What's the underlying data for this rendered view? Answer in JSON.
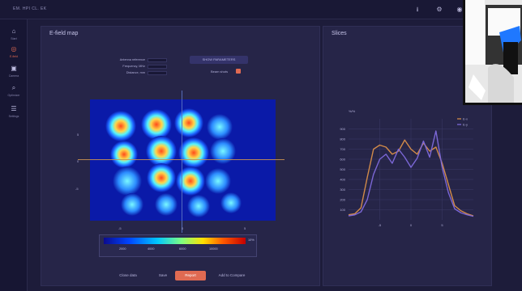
{
  "app": {
    "brand": "EM. HPI CL. EK",
    "topbar_icons": [
      "download-icon",
      "settings-icon",
      "user-icon"
    ]
  },
  "sidebar": {
    "items": [
      {
        "label": "Start",
        "icon": "home-icon",
        "active": false
      },
      {
        "label": "E-field",
        "icon": "target-icon",
        "active": true
      },
      {
        "label": "Camera",
        "icon": "camera-icon",
        "active": false
      },
      {
        "label": "Optimizer",
        "icon": "optimizer-icon",
        "active": false
      },
      {
        "label": "Settings",
        "icon": "sliders-icon",
        "active": false
      }
    ]
  },
  "field_map": {
    "title": "E-field map",
    "params": [
      {
        "key": "Antenna reference"
      },
      {
        "key": "Frequency, MHz"
      },
      {
        "key": "Distance, mm"
      }
    ],
    "show_parameters_label": "SHOW PARAMETERS",
    "beam_shots_label": "Beam shots",
    "beam_shots_checked": true,
    "x_ticks": [
      "-5",
      "0",
      "5"
    ],
    "y_ticks": [
      "5",
      "0",
      "-5"
    ],
    "colorbar": {
      "ticks": [
        "2000",
        "4000",
        "6000",
        "10000"
      ],
      "max_label": "10%"
    }
  },
  "slices": {
    "title": "Slices",
    "legend": [
      "E-x",
      "E-y"
    ]
  },
  "actions": {
    "close_label": "Close data",
    "save_label": "Save",
    "report_label": "Report",
    "compare_label": "Add to Compare"
  },
  "colors": {
    "accent": "#e06a52",
    "slice_orange": "#d18a49",
    "slice_purple": "#7b67d6",
    "background": "#1d1c3a",
    "panel": "#262548"
  },
  "chart_data": {
    "type": "line",
    "title": "Slices",
    "ylabel": "%/%",
    "xlim": [
      -10,
      10
    ],
    "ylim": [
      0,
      1000
    ],
    "y_ticks": [
      100,
      200,
      300,
      400,
      500,
      600,
      700,
      800,
      900
    ],
    "x_ticks": [
      -5,
      0,
      5
    ],
    "series": [
      {
        "name": "E-x",
        "color": "#d18a49",
        "x": [
          -10,
          -9,
          -8,
          -7,
          -6,
          -5,
          -4,
          -3,
          -2,
          -1,
          0,
          1,
          2,
          3,
          4,
          5,
          6,
          7,
          8,
          9,
          10
        ],
        "values": [
          50,
          60,
          120,
          420,
          700,
          740,
          720,
          650,
          680,
          790,
          700,
          650,
          760,
          680,
          720,
          560,
          350,
          140,
          90,
          60,
          40
        ]
      },
      {
        "name": "E-y",
        "color": "#7b67d6",
        "x": [
          -10,
          -9,
          -8,
          -7,
          -6,
          -5,
          -4,
          -3,
          -2,
          -1,
          0,
          1,
          2,
          3,
          4,
          5,
          6,
          7,
          8,
          9,
          10
        ],
        "values": [
          40,
          50,
          80,
          200,
          450,
          600,
          650,
          560,
          700,
          620,
          520,
          610,
          780,
          620,
          880,
          520,
          270,
          110,
          70,
          50,
          35
        ]
      }
    ]
  }
}
